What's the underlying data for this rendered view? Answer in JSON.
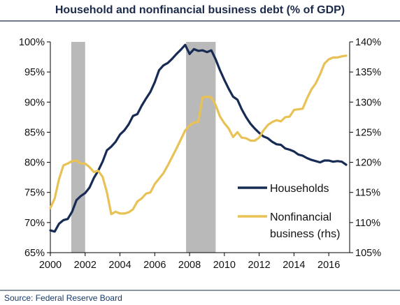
{
  "chart_data": {
    "type": "line",
    "title": "Household and nonfinancial business debt (% of GDP)",
    "source": "Source: Federal Reserve Board",
    "x_ticks": [
      "2000",
      "2002",
      "2004",
      "2006",
      "2008",
      "2010",
      "2012",
      "2014",
      "2016"
    ],
    "y_left_ticks": [
      "65%",
      "70%",
      "75%",
      "80%",
      "85%",
      "90%",
      "95%",
      "100%"
    ],
    "y_right_ticks": [
      "105%",
      "110%",
      "115%",
      "120%",
      "125%",
      "130%",
      "135%",
      "140%"
    ],
    "y_left_range": [
      65,
      100
    ],
    "y_right_range": [
      105,
      140
    ],
    "x_range": [
      2000,
      2017.2
    ],
    "recessions": [
      [
        2001.2,
        2002.0
      ],
      [
        2007.8,
        2009.5
      ]
    ],
    "colors": {
      "households": "#172b55",
      "business": "#e8c255",
      "recession": "#b9b9b9",
      "axis_text": "#111111"
    },
    "series": [
      {
        "name": "Households",
        "axis": "left",
        "x": [
          2000.0,
          2000.25,
          2000.5,
          2000.75,
          2001.0,
          2001.25,
          2001.5,
          2001.75,
          2002.0,
          2002.25,
          2002.5,
          2002.75,
          2003.0,
          2003.25,
          2003.5,
          2003.75,
          2004.0,
          2004.25,
          2004.5,
          2004.75,
          2005.0,
          2005.25,
          2005.5,
          2005.75,
          2006.0,
          2006.25,
          2006.5,
          2006.75,
          2007.0,
          2007.25,
          2007.5,
          2007.75,
          2008.0,
          2008.25,
          2008.5,
          2008.75,
          2009.0,
          2009.25,
          2009.5,
          2009.75,
          2010.0,
          2010.25,
          2010.5,
          2010.75,
          2011.0,
          2011.25,
          2011.5,
          2011.75,
          2012.0,
          2012.25,
          2012.5,
          2012.75,
          2013.0,
          2013.25,
          2013.5,
          2013.75,
          2014.0,
          2014.25,
          2014.5,
          2014.75,
          2015.0,
          2015.25,
          2015.5,
          2015.75,
          2016.0,
          2016.25,
          2016.5,
          2016.75,
          2017.0
        ],
        "values": [
          68.7,
          68.5,
          69.8,
          70.4,
          70.6,
          71.8,
          73.7,
          74.4,
          74.9,
          75.8,
          77.4,
          78.6,
          80.1,
          82.0,
          82.6,
          83.4,
          84.6,
          85.3,
          86.3,
          87.7,
          88.0,
          89.4,
          90.6,
          91.7,
          93.3,
          95.3,
          96.1,
          96.5,
          97.2,
          98.0,
          98.7,
          99.5,
          98.0,
          98.8,
          98.5,
          98.6,
          98.3,
          98.6,
          97.1,
          95.3,
          93.7,
          92.2,
          90.9,
          90.4,
          88.8,
          87.5,
          86.4,
          85.6,
          84.9,
          84.3,
          84.0,
          83.4,
          83.0,
          82.9,
          82.3,
          82.1,
          81.8,
          81.3,
          81.1,
          80.7,
          80.4,
          80.2,
          80.0,
          80.3,
          80.3,
          80.1,
          80.2,
          80.1,
          79.6
        ]
      },
      {
        "name": "Nonfinancial business (rhs)",
        "axis": "right",
        "x": [
          2000.0,
          2000.25,
          2000.5,
          2000.75,
          2001.0,
          2001.25,
          2001.5,
          2001.75,
          2002.0,
          2002.25,
          2002.5,
          2002.75,
          2003.0,
          2003.25,
          2003.5,
          2003.75,
          2004.0,
          2004.25,
          2004.5,
          2004.75,
          2005.0,
          2005.25,
          2005.5,
          2005.75,
          2006.0,
          2006.25,
          2006.5,
          2006.75,
          2007.0,
          2007.25,
          2007.5,
          2007.75,
          2008.0,
          2008.25,
          2008.5,
          2008.75,
          2009.0,
          2009.25,
          2009.5,
          2009.75,
          2010.0,
          2010.25,
          2010.5,
          2010.75,
          2011.0,
          2011.25,
          2011.5,
          2011.75,
          2012.0,
          2012.25,
          2012.5,
          2012.75,
          2013.0,
          2013.25,
          2013.5,
          2013.75,
          2014.0,
          2014.25,
          2014.5,
          2014.75,
          2015.0,
          2015.25,
          2015.5,
          2015.75,
          2016.0,
          2016.25,
          2016.5,
          2016.75,
          2017.0
        ],
        "values": [
          112.4,
          114.0,
          117.2,
          119.5,
          119.8,
          120.2,
          120.3,
          119.8,
          119.8,
          119.2,
          118.4,
          118.6,
          117.6,
          115.0,
          111.4,
          111.8,
          111.5,
          111.5,
          111.7,
          112.2,
          113.5,
          114.0,
          114.8,
          115.0,
          116.4,
          117.3,
          118.2,
          119.5,
          120.9,
          122.3,
          123.8,
          125.3,
          126.1,
          126.6,
          126.7,
          130.8,
          130.9,
          130.8,
          129.5,
          127.6,
          126.5,
          125.6,
          124.2,
          125.0,
          124.1,
          124.0,
          123.6,
          123.6,
          124.1,
          125.3,
          126.2,
          126.7,
          127.0,
          126.8,
          127.5,
          127.6,
          128.7,
          128.8,
          128.9,
          130.6,
          132.1,
          133.1,
          134.6,
          136.4,
          137.1,
          137.4,
          137.4,
          137.6,
          137.7
        ]
      }
    ],
    "legend": {
      "placement": "lower-right",
      "entries": [
        [
          "Households"
        ],
        [
          "Nonfinancial",
          "business (rhs)"
        ]
      ]
    }
  }
}
